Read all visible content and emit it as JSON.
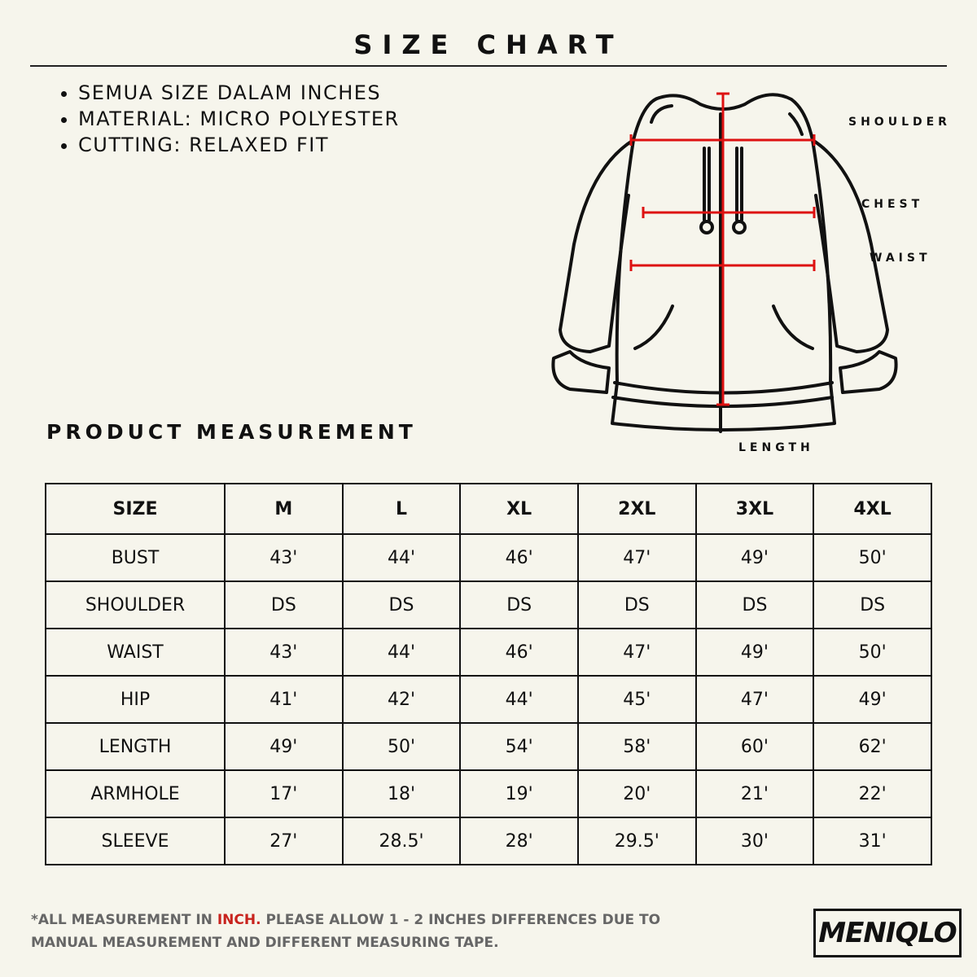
{
  "header": {
    "title": "SIZE CHART"
  },
  "notes": [
    "SEMUA SIZE DALAM INCHES",
    "MATERIAL:  MICRO POLYESTER",
    "CUTTING: RELAXED FIT"
  ],
  "diagram_labels": {
    "shoulder": "SHOULDER",
    "chest": "CHEST",
    "waist": "WAIST",
    "length": "LENGTH"
  },
  "section_title": "PRODUCT MEASUREMENT",
  "table": {
    "header": [
      "SIZE",
      "M",
      "L",
      "XL",
      "2XL",
      "3XL",
      "4XL"
    ],
    "rows": [
      [
        "BUST",
        "43'",
        "44'",
        "46'",
        "47'",
        "49'",
        "50'"
      ],
      [
        "SHOULDER",
        "DS",
        "DS",
        "DS",
        "DS",
        "DS",
        "DS"
      ],
      [
        "WAIST",
        "43'",
        "44'",
        "46'",
        "47'",
        "49'",
        "50'"
      ],
      [
        "HIP",
        "41'",
        "42'",
        "44'",
        "45'",
        "47'",
        "49'"
      ],
      [
        "LENGTH",
        "49'",
        "50'",
        "54'",
        "58'",
        "60'",
        "62'"
      ],
      [
        "ARMHOLE",
        "17'",
        "18'",
        "19'",
        "20'",
        "21'",
        "22'"
      ],
      [
        "SLEEVE",
        "27'",
        "28.5'",
        "28'",
        "29.5'",
        "30'",
        "31'"
      ]
    ]
  },
  "footer": {
    "note_before": "*ALL MEASUREMENT IN",
    "note_highlight": "INCH.",
    "note_after": "PLEASE ALLOW 1 - 2 INCHES DIFFERENCES DUE TO MANUAL MEASUREMENT AND DIFFERENT MEASURING TAPE."
  },
  "brand": "MENIQLO"
}
